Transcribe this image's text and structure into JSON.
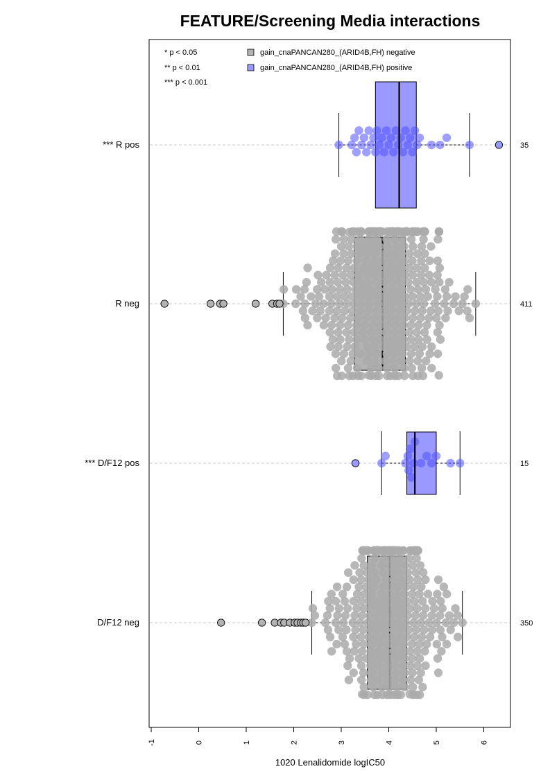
{
  "chart_data": {
    "type": "boxplot",
    "title": "FEATURE/Screening Media interactions",
    "xlabel": "1020 Lenalidomide logIC50",
    "xlim": [
      -1,
      6.6
    ],
    "x_ticks": [
      -1,
      0,
      1,
      2,
      3,
      4,
      5,
      6
    ],
    "x_tick_labels": [
      "-1",
      "0",
      "1",
      "2",
      "3",
      "4",
      "5",
      "6"
    ],
    "grid": "horizontal dashed lines through each group",
    "legend_position": "top",
    "significance_legend": [
      "* p < 0.05",
      "** p < 0.01",
      "*** p < 0.001"
    ],
    "series": [
      {
        "name": "gain_cnaPANCAN280_(ARID4B,FH) negative",
        "color": "#b3b3b3"
      },
      {
        "name": "gain_cnaPANCAN280_(ARID4B,FH) positive",
        "color": "#9999ff"
      }
    ],
    "groups": [
      {
        "label": "*** R pos",
        "count": "35",
        "series": "positive",
        "stats": {
          "whisker_low": 2.95,
          "q1": 3.72,
          "median": 4.22,
          "q3": 4.58,
          "whisker_high": 5.7
        },
        "outliers": [
          6.32
        ],
        "points": [
          2.95,
          3.22,
          3.28,
          3.32,
          3.37,
          3.43,
          3.48,
          3.53,
          3.58,
          3.62,
          3.68,
          3.72,
          3.75,
          3.8,
          3.85,
          3.9,
          3.95,
          4.0,
          4.05,
          4.1,
          4.15,
          4.2,
          4.25,
          4.3,
          4.35,
          4.4,
          4.45,
          4.5,
          4.55,
          4.6,
          4.65,
          4.9,
          5.08,
          5.22,
          5.7
        ]
      },
      {
        "label": "R neg",
        "count": "411",
        "series": "negative",
        "stats": {
          "whisker_low": 1.78,
          "q1": 3.28,
          "median": 3.87,
          "q3": 4.35,
          "whisker_high": 5.83
        },
        "outliers": [
          -0.72,
          0.25,
          0.45,
          0.52,
          1.2,
          1.55,
          1.65,
          1.7
        ],
        "points_summary": "approx. 411 beeswarm points spanning 1.78 to 5.83, densest between 3.3 and 4.4"
      },
      {
        "label": "*** D/F12 pos",
        "count": "15",
        "series": "positive",
        "stats": {
          "whisker_low": 3.85,
          "q1": 4.38,
          "median": 4.55,
          "q3": 5.0,
          "whisker_high": 5.5
        },
        "outliers": [
          3.3
        ],
        "points": [
          3.85,
          3.93,
          4.35,
          4.4,
          4.42,
          4.45,
          4.48,
          4.52,
          4.55,
          4.68,
          4.8,
          4.9,
          5.0,
          5.3,
          5.5
        ]
      },
      {
        "label": "D/F12 neg",
        "count": "350",
        "series": "negative",
        "stats": {
          "whisker_low": 2.38,
          "q1": 3.55,
          "median": 4.02,
          "q3": 4.38,
          "whisker_high": 5.55
        },
        "outliers": [
          0.47,
          1.33,
          1.6,
          1.73,
          1.8,
          1.92,
          2.02,
          2.08,
          2.15,
          2.2,
          2.25
        ],
        "points_summary": "approx. 350 beeswarm points spanning 2.38 to 5.55, densest between 3.5 and 4.5"
      }
    ]
  }
}
